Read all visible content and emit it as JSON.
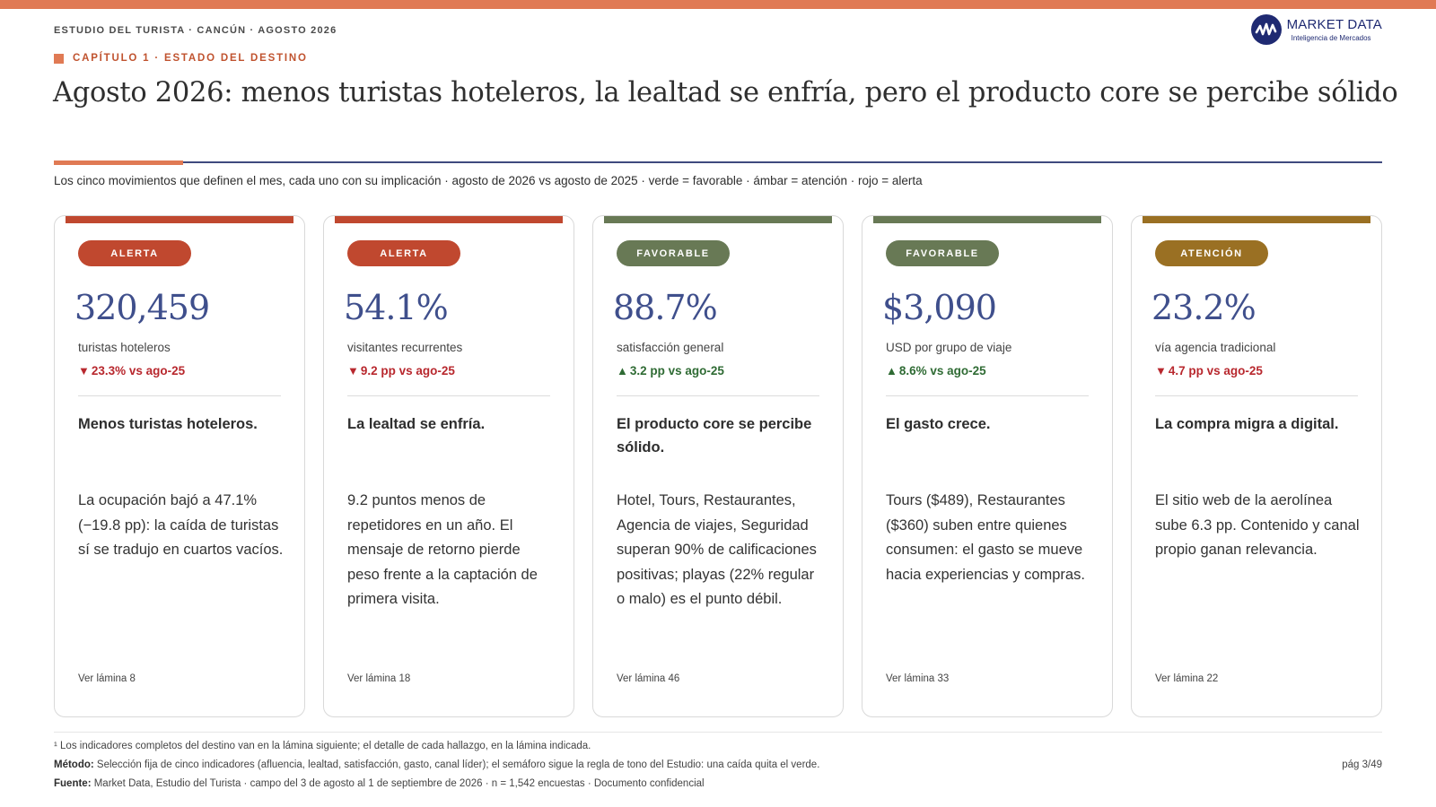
{
  "header": {
    "kicker": "ESTUDIO DEL TURISTA · CANCÚN · AGOSTO 2026",
    "logo_name": "MARKET DATA",
    "logo_sub": "Inteligencia de Mercados",
    "logo_icon": "market-data-logo-icon",
    "chapter": "CAPÍTULO 1 · ESTADO DEL DESTINO",
    "headline": "Agosto 2026: menos turistas hoteleros, la lealtad se enfría, pero el producto core se percibe sólido",
    "subtitle": "Los cinco movimientos que definen el mes, cada uno con su implicación · agosto de 2026 vs agosto de 2025 · verde = favorable · ámbar = atención · rojo = alerta"
  },
  "colors": {
    "accent": "#e07a54",
    "navy": "#1f2a72",
    "metric": "#3f4f8c",
    "alert": "#c0482f",
    "favorable": "#687955",
    "attention": "#9a7023",
    "delta_down": "#b8282e",
    "delta_up": "#2f6b34"
  },
  "cards": [
    {
      "status": "ALERTA",
      "status_color": "#c0482f",
      "value": "320,459",
      "label": "turistas hoteleros",
      "delta_arrow": "▼",
      "delta_text": "23.3% vs ago-25",
      "delta_color": "#b8282e",
      "title": "Menos turistas hoteleros.",
      "body": "La ocupación bajó a 47.1% (−19.8 pp): la caída de turistas sí se tradujo en cuartos vacíos.",
      "ref": "Ver lámina 8"
    },
    {
      "status": "ALERTA",
      "status_color": "#c0482f",
      "value": "54.1%",
      "label": "visitantes recurrentes",
      "delta_arrow": "▼",
      "delta_text": "9.2 pp vs ago-25",
      "delta_color": "#b8282e",
      "title": "La lealtad se enfría.",
      "body": "9.2 puntos menos de repetidores en un año. El mensaje de retorno pierde peso frente a la captación de primera visita.",
      "ref": "Ver lámina 18"
    },
    {
      "status": "FAVORABLE",
      "status_color": "#687955",
      "value": "88.7%",
      "label": "satisfacción general",
      "delta_arrow": "▲",
      "delta_text": "3.2 pp vs ago-25",
      "delta_color": "#2f6b34",
      "title": "El producto core se percibe sólido.",
      "body": "Hotel, Tours, Restaurantes, Agencia de viajes, Seguridad superan 90% de calificaciones positivas; playas (22% regular o malo) es el punto débil.",
      "ref": "Ver lámina 46"
    },
    {
      "status": "FAVORABLE",
      "status_color": "#687955",
      "value": "$3,090",
      "label": "USD por grupo de viaje",
      "delta_arrow": "▲",
      "delta_text": "8.6% vs ago-25",
      "delta_color": "#2f6b34",
      "title": "El gasto crece.",
      "body": "Tours ($489), Restaurantes ($360) suben entre quienes consumen: el gasto se mueve hacia experiencias y compras.",
      "ref": "Ver lámina 33"
    },
    {
      "status": "ATENCIÓN",
      "status_color": "#9a7023",
      "value": "23.2%",
      "label": "vía agencia tradicional",
      "delta_arrow": "▼",
      "delta_text": "4.7 pp vs ago-25",
      "delta_color": "#b8282e",
      "title": "La compra migra a digital.",
      "body": "El sitio web de la aerolínea sube 6.3 pp. Contenido y canal propio ganan relevancia.",
      "ref": "Ver lámina 22"
    }
  ],
  "footer": {
    "note": "¹ Los indicadores completos del destino van en la lámina siguiente; el detalle de cada hallazgo, en la lámina indicada.",
    "method_label": "Método:",
    "method_text": " Selección fija de cinco indicadores (afluencia, lealtad, satisfacción, gasto, canal líder); el semáforo sigue la regla de tono del Estudio: una caída quita el verde.",
    "source_label": "Fuente:",
    "source_text": " Market Data, Estudio del Turista · campo del 3 de agosto al 1 de septiembre de 2026 · n = 1,542 encuestas · Documento confidencial",
    "page": "pág 3/49"
  }
}
